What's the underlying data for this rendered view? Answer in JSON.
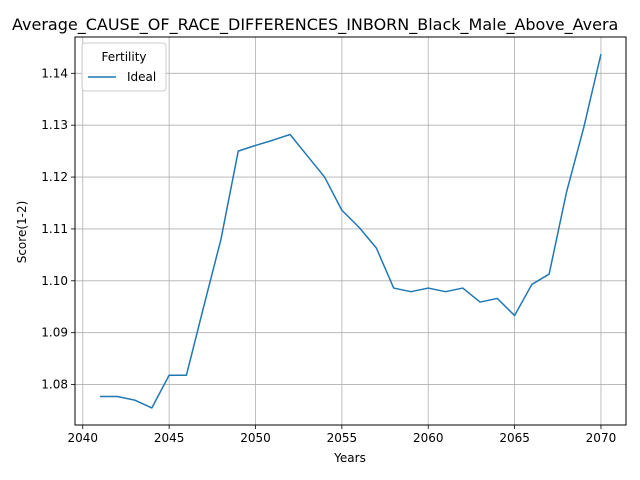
{
  "chart_data": {
    "type": "line",
    "title": "Average_CAUSE_OF_RACE_DIFFERENCES_INBORN_Black_Male_Above_Avera",
    "xlabel": "Years",
    "ylabel": "Score(1-2)",
    "xlim": [
      2039.55,
      2071.45
    ],
    "ylim": [
      1.0722,
      1.147
    ],
    "xticks": [
      2040,
      2045,
      2050,
      2055,
      2060,
      2065,
      2070
    ],
    "yticks": [
      1.08,
      1.09,
      1.1,
      1.11,
      1.12,
      1.13,
      1.14
    ],
    "xtick_labels": [
      "2040",
      "2045",
      "2050",
      "2055",
      "2060",
      "2065",
      "2070"
    ],
    "ytick_labels": [
      "1.08",
      "1.09",
      "1.10",
      "1.11",
      "1.12",
      "1.13",
      "1.14"
    ],
    "grid": true,
    "legend": {
      "title": "Fertility",
      "position": "top-left"
    },
    "series": [
      {
        "name": "Ideal",
        "color": "#1f77b4",
        "x": [
          2041,
          2042,
          2043,
          2044,
          2045,
          2046,
          2047,
          2048,
          2049,
          2050,
          2051,
          2052,
          2053,
          2054,
          2055,
          2056,
          2057,
          2058,
          2059,
          2060,
          2061,
          2062,
          2063,
          2064,
          2065,
          2066,
          2067,
          2068,
          2069,
          2070
        ],
        "y": [
          1.0777,
          1.0777,
          1.077,
          1.0755,
          1.0818,
          1.0818,
          1.095,
          1.108,
          1.125,
          1.1261,
          1.1271,
          1.1282,
          1.1241,
          1.12,
          1.1136,
          1.1103,
          1.1063,
          1.0986,
          1.0979,
          1.0986,
          1.0979,
          1.0986,
          1.0959,
          1.0966,
          1.0933,
          1.0993,
          1.1013,
          1.117,
          1.1295,
          1.1437
        ]
      }
    ]
  }
}
